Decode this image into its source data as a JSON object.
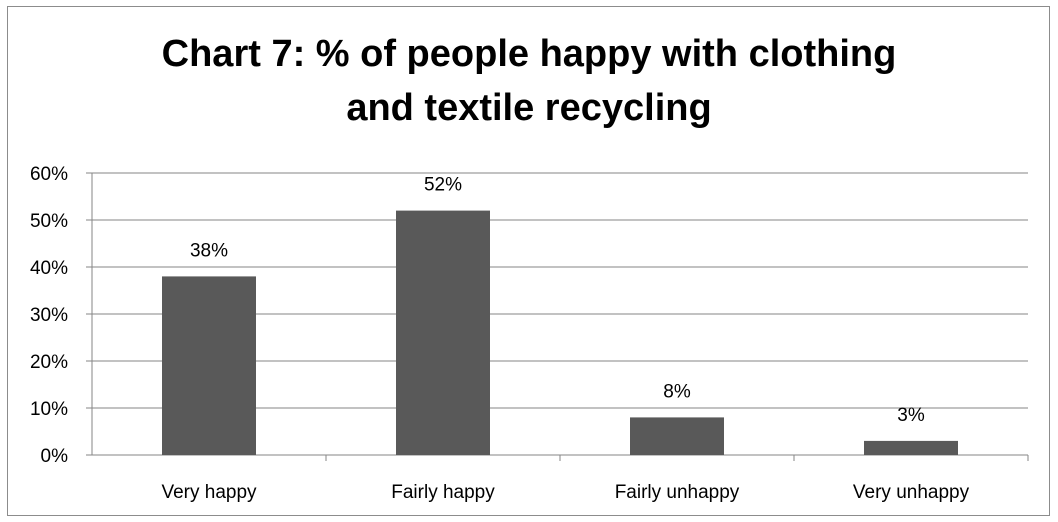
{
  "chart_data": {
    "type": "bar",
    "title_lines": [
      "Chart 7: % of people happy with clothing",
      "and textile recycling"
    ],
    "categories": [
      "Very happy",
      "Fairly happy",
      "Fairly unhappy",
      "Very unhappy"
    ],
    "values": [
      38,
      52,
      8,
      3
    ],
    "data_labels": [
      "38%",
      "52%",
      "8%",
      "3%"
    ],
    "y_ticks": [
      "0%",
      "10%",
      "20%",
      "30%",
      "40%",
      "50%",
      "60%"
    ],
    "ylim": [
      0,
      60
    ],
    "grid": true,
    "bar_color": "#595959",
    "grid_color": "#868686"
  }
}
